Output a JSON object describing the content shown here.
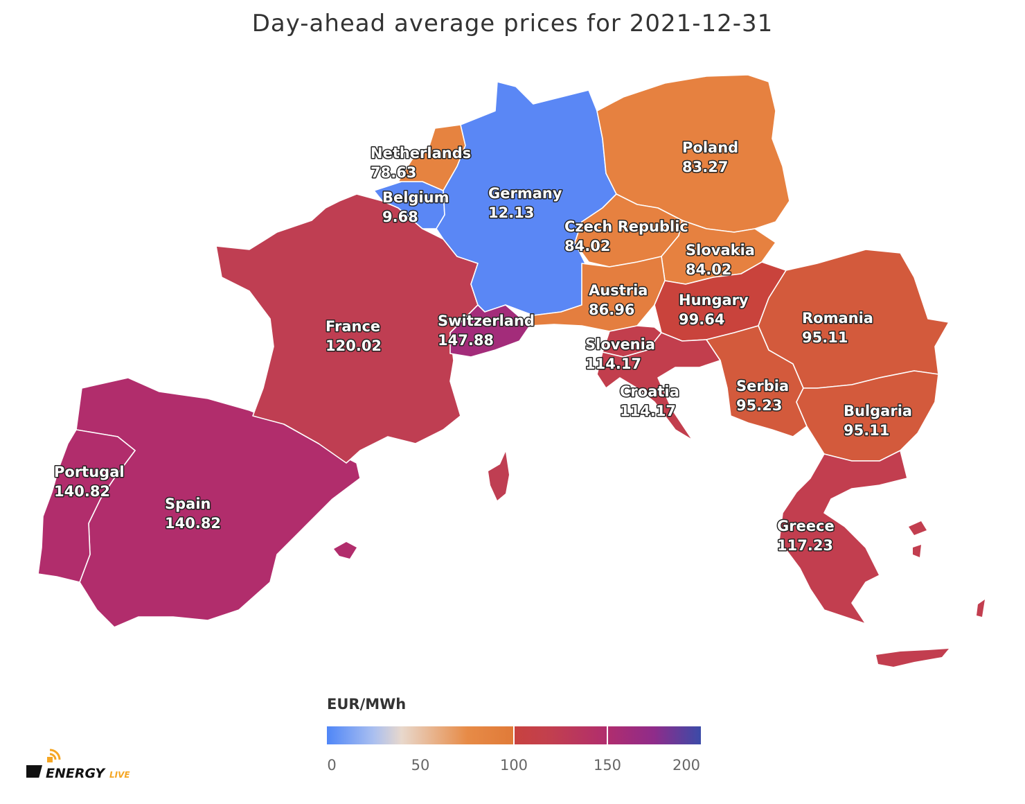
{
  "title": "Day-ahead average prices for 2021-12-31",
  "unit": "EUR/MWh",
  "logo_text": "ENERGYLIVE",
  "scale": {
    "min": 0,
    "max": 200,
    "ticks": [
      "0",
      "50",
      "100",
      "150",
      "200"
    ],
    "stops": [
      {
        "value": 0,
        "color": "#4f86f7"
      },
      {
        "value": 25,
        "color": "#aabff0"
      },
      {
        "value": 40,
        "color": "#e8d8cc"
      },
      {
        "value": 75,
        "color": "#e78b47"
      },
      {
        "value": 100,
        "color": "#e07a38"
      },
      {
        "value": 100,
        "color": "#c8423f"
      },
      {
        "value": 120,
        "color": "#c23f4f"
      },
      {
        "value": 150,
        "color": "#b02d6e"
      },
      {
        "value": 175,
        "color": "#8f2c8a"
      },
      {
        "value": 200,
        "color": "#3b4ba8"
      }
    ]
  },
  "countries": [
    {
      "id": "germany",
      "name": "Germany",
      "value": "12.13",
      "color": "#5a87f5"
    },
    {
      "id": "belgium",
      "name": "Belgium",
      "value": "9.68",
      "color": "#5a87f5"
    },
    {
      "id": "netherlands",
      "name": "Netherlands",
      "value": "78.63",
      "color": "#e68340"
    },
    {
      "id": "poland",
      "name": "Poland",
      "value": "83.27",
      "color": "#e68140"
    },
    {
      "id": "czech",
      "name": "Czech Republic",
      "value": "84.02",
      "color": "#e68140"
    },
    {
      "id": "slovakia",
      "name": "Slovakia",
      "value": "84.02",
      "color": "#e68140"
    },
    {
      "id": "austria",
      "name": "Austria",
      "value": "86.96",
      "color": "#e47e3f"
    },
    {
      "id": "hungary",
      "name": "Hungary",
      "value": "99.64",
      "color": "#c9433c"
    },
    {
      "id": "romania",
      "name": "Romania",
      "value": "95.11",
      "color": "#d35a3c"
    },
    {
      "id": "serbia",
      "name": "Serbia",
      "value": "95.23",
      "color": "#d35a3c"
    },
    {
      "id": "bulgaria",
      "name": "Bulgaria",
      "value": "95.11",
      "color": "#d35a3c"
    },
    {
      "id": "slovenia",
      "name": "Slovenia",
      "value": "114.17",
      "color": "#c23e4d"
    },
    {
      "id": "croatia",
      "name": "Croatia",
      "value": "114.17",
      "color": "#c23e4d"
    },
    {
      "id": "greece",
      "name": "Greece",
      "value": "117.23",
      "color": "#c23e4f"
    },
    {
      "id": "france",
      "name": "France",
      "value": "120.02",
      "color": "#bf3e52"
    },
    {
      "id": "switzerland",
      "name": "Switzerland",
      "value": "147.88",
      "color": "#a32c7a"
    },
    {
      "id": "spain",
      "name": "Spain",
      "value": "140.82",
      "color": "#b12d6c"
    },
    {
      "id": "portugal",
      "name": "Portugal",
      "value": "140.82",
      "color": "#b12d6c"
    }
  ]
}
